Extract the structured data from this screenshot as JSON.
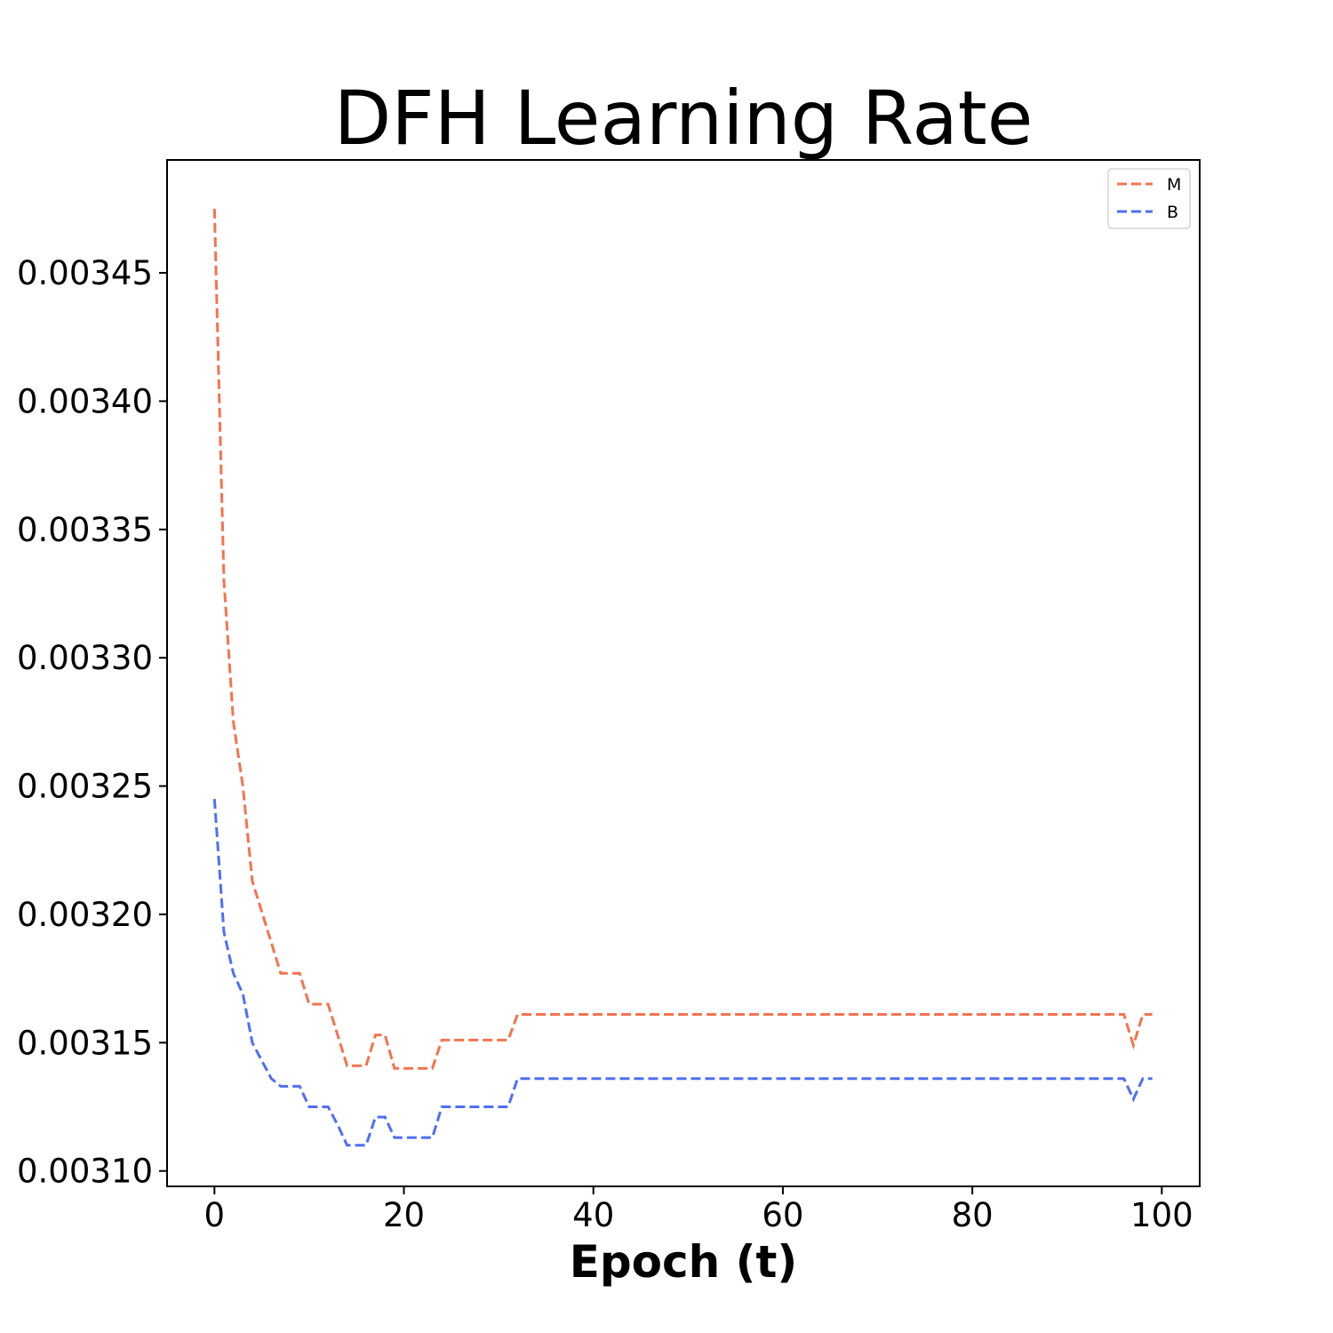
{
  "chart_data": {
    "type": "line",
    "title": "DFH Learning Rate",
    "xlabel": "Epoch (t)",
    "ylabel": "",
    "xlim": [
      -5,
      104
    ],
    "ylim": [
      0.003094,
      0.003494
    ],
    "xticks": [
      0,
      20,
      40,
      60,
      80,
      100
    ],
    "xtick_labels": [
      "0",
      "20",
      "40",
      "60",
      "80",
      "100"
    ],
    "yticks": [
      0.0031,
      0.00315,
      0.0032,
      0.00325,
      0.0033,
      0.00335,
      0.0034,
      0.00345
    ],
    "ytick_labels": [
      "0.00310",
      "0.00315",
      "0.00320",
      "0.00325",
      "0.00330",
      "0.00335",
      "0.00340",
      "0.00345"
    ],
    "grid": false,
    "legend_position": "top-right",
    "line_style": "dashed",
    "series": [
      {
        "name": "M",
        "color": "#f4734f",
        "x": [
          0,
          1,
          2,
          3,
          4,
          5,
          6,
          7,
          8,
          9,
          10,
          11,
          12,
          13,
          14,
          15,
          16,
          17,
          18,
          19,
          20,
          21,
          22,
          23,
          24,
          25,
          26,
          27,
          28,
          29,
          30,
          31,
          32,
          33,
          96,
          97,
          98,
          99
        ],
        "y": [
          0.003475,
          0.00333,
          0.003275,
          0.00325,
          0.003213,
          0.003201,
          0.003189,
          0.003177,
          0.003177,
          0.003177,
          0.003165,
          0.003165,
          0.003165,
          0.003153,
          0.003141,
          0.003141,
          0.003141,
          0.003153,
          0.003153,
          0.00314,
          0.00314,
          0.00314,
          0.00314,
          0.00314,
          0.003151,
          0.003151,
          0.003151,
          0.003151,
          0.003151,
          0.003151,
          0.003151,
          0.003151,
          0.003161,
          0.003161,
          0.003161,
          0.003149,
          0.003161,
          0.003161
        ]
      },
      {
        "name": "B",
        "color": "#4f6ef7",
        "x": [
          0,
          1,
          2,
          3,
          4,
          5,
          6,
          7,
          8,
          9,
          10,
          11,
          12,
          13,
          14,
          15,
          16,
          17,
          18,
          19,
          20,
          21,
          22,
          23,
          24,
          25,
          26,
          27,
          28,
          29,
          30,
          31,
          32,
          33,
          96,
          97,
          98,
          99
        ],
        "y": [
          0.003245,
          0.003193,
          0.003177,
          0.003169,
          0.00315,
          0.003143,
          0.003136,
          0.003133,
          0.003133,
          0.003133,
          0.003125,
          0.003125,
          0.003125,
          0.003118,
          0.00311,
          0.00311,
          0.00311,
          0.003121,
          0.003121,
          0.003113,
          0.003113,
          0.003113,
          0.003113,
          0.003113,
          0.003125,
          0.003125,
          0.003125,
          0.003125,
          0.003125,
          0.003125,
          0.003125,
          0.003125,
          0.003136,
          0.003136,
          0.003136,
          0.003128,
          0.003136,
          0.003136
        ]
      }
    ]
  }
}
